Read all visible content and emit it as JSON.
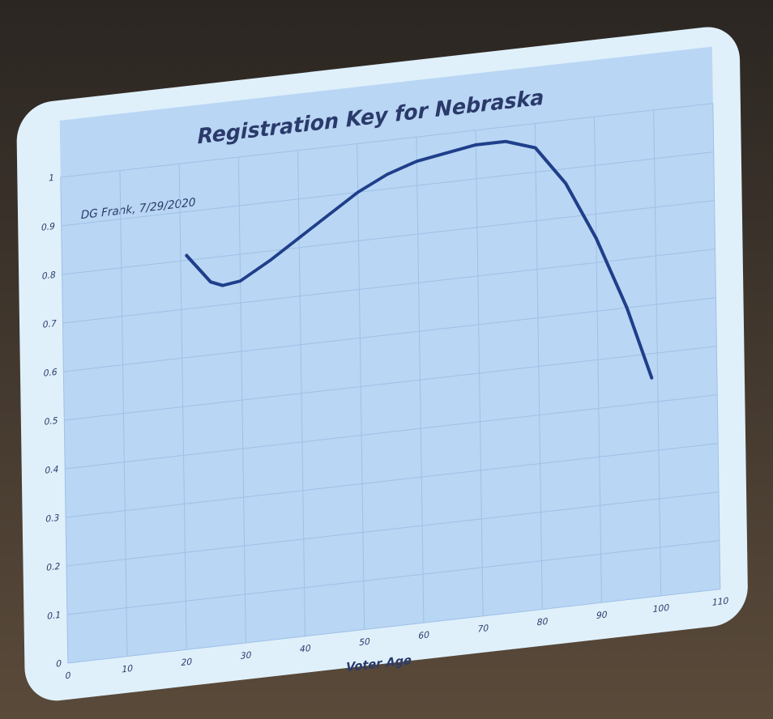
{
  "chart_data": {
    "type": "line",
    "title": "Registration Key for Nebraska",
    "annotation": "DG Frank, 7/29/2020",
    "x_label": "Voter Age",
    "x": [
      21,
      25,
      27,
      30,
      35,
      40,
      45,
      50,
      55,
      60,
      65,
      70,
      75,
      80,
      85,
      90,
      95,
      99
    ],
    "values": [
      0.81,
      0.75,
      0.74,
      0.745,
      0.78,
      0.82,
      0.86,
      0.9,
      0.93,
      0.95,
      0.96,
      0.97,
      0.97,
      0.95,
      0.87,
      0.75,
      0.6,
      0.45
    ],
    "color": "#1f3f8a",
    "xlim": [
      0,
      110
    ],
    "xticks": [
      0,
      10,
      20,
      30,
      40,
      50,
      60,
      70,
      80,
      90,
      100,
      110
    ],
    "ylim": [
      0,
      1
    ],
    "yticks": [
      0,
      0.1,
      0.2,
      0.3,
      0.4,
      0.5,
      0.6,
      0.7,
      0.8,
      0.9,
      1
    ],
    "grid": true
  }
}
